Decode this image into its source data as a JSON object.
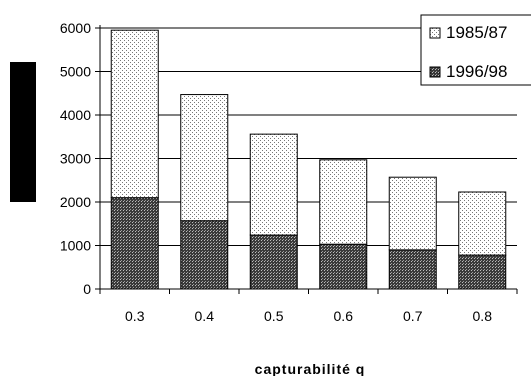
{
  "chart_data": {
    "type": "bar",
    "stacked": true,
    "categories": [
      "0.3",
      "0.4",
      "0.5",
      "0.6",
      "0.7",
      "0.8"
    ],
    "series": [
      {
        "name": "1996/98",
        "values": [
          2100,
          1570,
          1240,
          1030,
          900,
          780
        ],
        "fill": "dark-crosshatch"
      },
      {
        "name": "1985/87",
        "values": [
          3850,
          2900,
          2320,
          1940,
          1670,
          1450
        ],
        "fill": "light-dots"
      }
    ],
    "totals": [
      5950,
      4470,
      3560,
      2970,
      2570,
      2230
    ],
    "title": "",
    "xlabel": "capturabilité q",
    "ylabel": "",
    "ylim": [
      0,
      6000
    ],
    "yticks": [
      0,
      1000,
      2000,
      3000,
      4000,
      5000,
      6000
    ],
    "grid": "horizontal",
    "legend": "top-right",
    "legend_order": [
      "1985/87",
      "1996/98"
    ],
    "colors": {
      "bar_outline": "#000000",
      "dark_fill": "#555555",
      "light_fill": "#ffffff",
      "ylabel_block": "#000000"
    }
  }
}
